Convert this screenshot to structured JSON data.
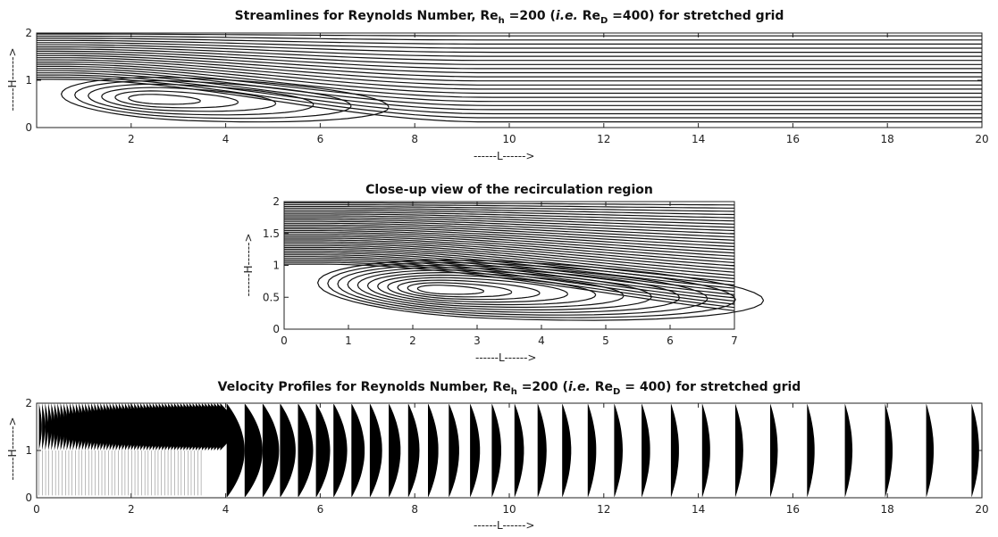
{
  "chart_data": [
    {
      "type": "line",
      "title_parts": [
        "Streamlines for Reynolds Number, Re",
        "h",
        " =200 (",
        "i.e.",
        " Re",
        "D",
        " =400) for stretched grid"
      ],
      "xlabel": "------L------>",
      "ylabel": "------H------>",
      "xlim": [
        0,
        20
      ],
      "ylim": [
        0,
        2
      ],
      "xticks": [
        2,
        4,
        6,
        8,
        10,
        12,
        14,
        16,
        18,
        20
      ],
      "yticks": [
        0,
        1,
        2
      ],
      "recirculation": {
        "x_center": 2.4,
        "y_center": 0.6,
        "reattachment_x": 6.2
      },
      "grid": false
    },
    {
      "type": "line",
      "title_parts": [
        "Close-up view of the recirculation region"
      ],
      "xlabel": "------L------>",
      "ylabel": "------H------>",
      "xlim": [
        0,
        7
      ],
      "ylim": [
        0,
        2
      ],
      "xticks": [
        0,
        1,
        2,
        3,
        4,
        5,
        6,
        7
      ],
      "yticks": [
        0,
        0.5,
        1,
        1.5,
        2
      ],
      "recirculation": {
        "x_center": 2.4,
        "y_center": 0.62,
        "reattachment_x": 6.2
      },
      "grid": false
    },
    {
      "type": "area",
      "title_parts": [
        "Velocity Profiles for Reynolds Number, Re",
        "h",
        " =200 (",
        "i.e.",
        " Re",
        "D",
        " = 400) for stretched grid"
      ],
      "xlabel": "------L------>",
      "ylabel": "------H------>",
      "xlim": [
        0,
        20
      ],
      "ylim": [
        0,
        2
      ],
      "xticks": [
        0,
        2,
        4,
        6,
        8,
        10,
        12,
        14,
        16,
        18,
        20
      ],
      "yticks": [
        0,
        1,
        2
      ],
      "profile_stations_x": [
        4.02,
        4.4,
        4.78,
        5.15,
        5.53,
        5.91,
        6.28,
        6.66,
        7.05,
        7.45,
        7.86,
        8.28,
        8.72,
        9.17,
        9.63,
        10.11,
        10.6,
        11.12,
        11.66,
        12.22,
        12.8,
        13.42,
        14.08,
        14.78,
        15.52,
        16.3,
        17.1,
        17.95,
        18.82,
        19.78
      ],
      "profile_peak_width": [
        0.38,
        0.38,
        0.35,
        0.33,
        0.32,
        0.3,
        0.29,
        0.28,
        0.26,
        0.25,
        0.24,
        0.22,
        0.22,
        0.21,
        0.2,
        0.2,
        0.19,
        0.19,
        0.18,
        0.18,
        0.18,
        0.17,
        0.17,
        0.17,
        0.16,
        0.16,
        0.16,
        0.16,
        0.16,
        0.16
      ],
      "grid": false
    }
  ]
}
